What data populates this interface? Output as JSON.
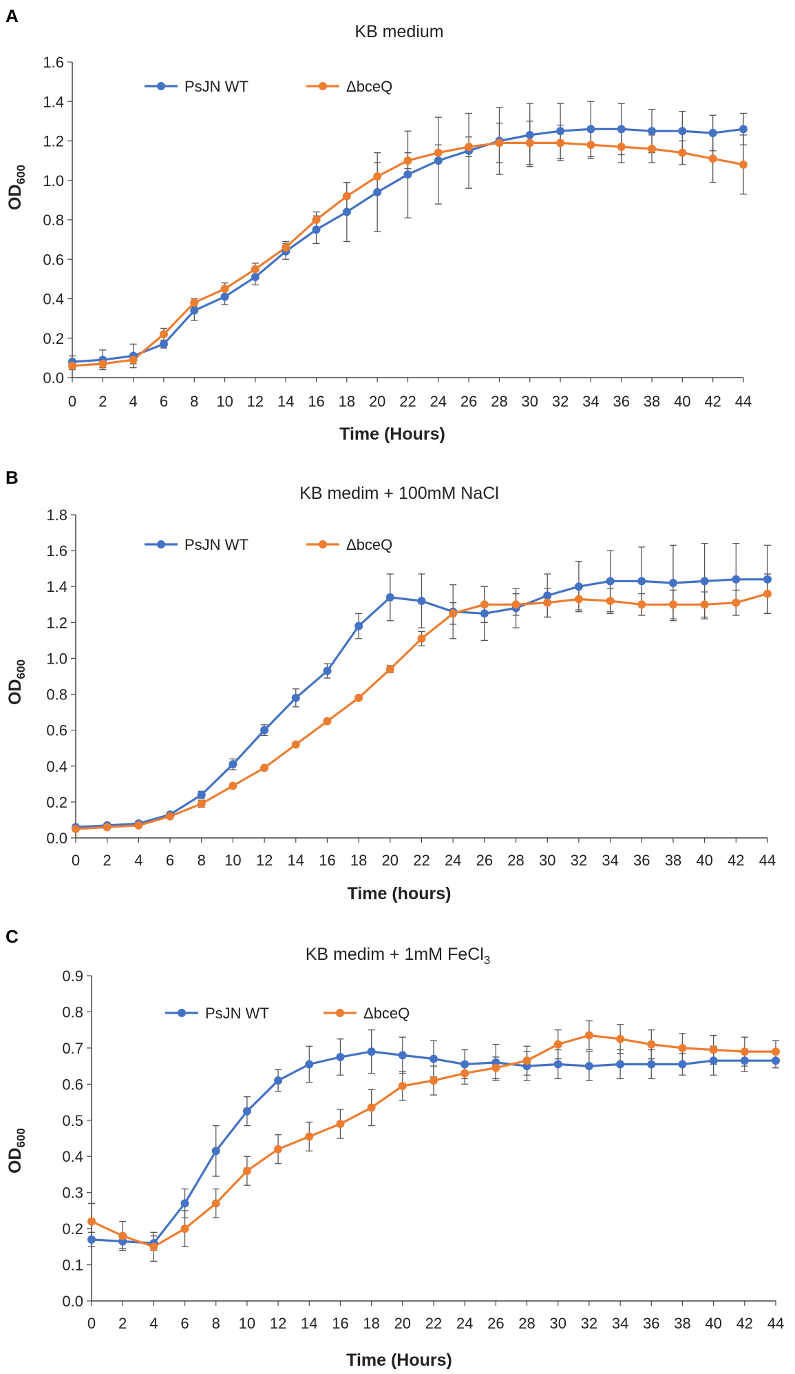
{
  "colors": {
    "wt": "#4472C4",
    "mut": "#ED7D31",
    "axis": "#444444",
    "err": "#555555"
  },
  "chart_data": [
    {
      "type": "line",
      "panel": "A",
      "title": "KB medium",
      "xlabel": "Time (Hours)",
      "ylabel_main": "OD",
      "ylabel_sub": "600",
      "ylim": [
        0,
        1.6
      ],
      "yticks": [
        "0.0",
        "0.2",
        "0.4",
        "0.6",
        "0.8",
        "1.0",
        "1.2",
        "1.4",
        "1.6"
      ],
      "x": [
        0,
        2,
        4,
        6,
        8,
        10,
        12,
        14,
        16,
        18,
        20,
        22,
        24,
        26,
        28,
        30,
        32,
        34,
        36,
        38,
        40,
        42,
        44
      ],
      "legend": [
        "PsJN WT",
        "ΔbceQ"
      ],
      "series": [
        {
          "name": "PsJN WT",
          "values": [
            0.08,
            0.09,
            0.11,
            0.17,
            0.34,
            0.41,
            0.51,
            0.64,
            0.75,
            0.84,
            0.94,
            1.03,
            1.1,
            1.15,
            1.2,
            1.23,
            1.25,
            1.26,
            1.26,
            1.25,
            1.25,
            1.24,
            1.26
          ],
          "errors": [
            0.03,
            0.05,
            0.06,
            0.02,
            0.05,
            0.04,
            0.04,
            0.04,
            0.07,
            0.15,
            0.2,
            0.22,
            0.22,
            0.19,
            0.17,
            0.16,
            0.14,
            0.14,
            0.13,
            0.11,
            0.1,
            0.09,
            0.08
          ]
        },
        {
          "name": "ΔbceQ",
          "values": [
            0.06,
            0.07,
            0.09,
            0.22,
            0.38,
            0.45,
            0.55,
            0.66,
            0.8,
            0.92,
            1.02,
            1.1,
            1.14,
            1.17,
            1.19,
            1.19,
            1.19,
            1.18,
            1.17,
            1.16,
            1.14,
            1.11,
            1.08
          ],
          "errors": [
            0.02,
            0.02,
            0.02,
            0.03,
            0.02,
            0.03,
            0.03,
            0.03,
            0.04,
            0.07,
            0.07,
            0.04,
            0.04,
            0.05,
            0.1,
            0.11,
            0.09,
            0.07,
            0.08,
            0.07,
            0.06,
            0.12,
            0.15
          ]
        }
      ]
    },
    {
      "type": "line",
      "panel": "B",
      "title": "KB medim + 100mM NaCl",
      "xlabel": "Time (hours)",
      "ylabel_main": "OD",
      "ylabel_sub": "600",
      "ylim": [
        0,
        1.8
      ],
      "yticks": [
        "0.0",
        "0.2",
        "0.4",
        "0.6",
        "0.8",
        "1.0",
        "1.2",
        "1.4",
        "1.6",
        "1.8"
      ],
      "x": [
        0,
        2,
        4,
        6,
        8,
        10,
        12,
        14,
        16,
        18,
        20,
        22,
        24,
        26,
        28,
        30,
        32,
        34,
        36,
        38,
        40,
        42,
        44
      ],
      "legend": [
        "PsJN WT",
        "ΔbceQ"
      ],
      "series": [
        {
          "name": "PsJN WT",
          "values": [
            0.06,
            0.07,
            0.08,
            0.13,
            0.24,
            0.41,
            0.6,
            0.78,
            0.93,
            1.18,
            1.34,
            1.32,
            1.26,
            1.25,
            1.28,
            1.35,
            1.4,
            1.43,
            1.43,
            1.42,
            1.43,
            1.44,
            1.44
          ],
          "errors": [
            0.01,
            0.01,
            0.01,
            0.01,
            0.02,
            0.03,
            0.03,
            0.05,
            0.04,
            0.07,
            0.13,
            0.15,
            0.15,
            0.15,
            0.11,
            0.12,
            0.14,
            0.17,
            0.19,
            0.21,
            0.21,
            0.2,
            0.19
          ]
        },
        {
          "name": "ΔbceQ",
          "values": [
            0.05,
            0.06,
            0.07,
            0.12,
            0.19,
            0.29,
            0.39,
            0.52,
            0.65,
            0.78,
            0.94,
            1.11,
            1.25,
            1.3,
            1.3,
            1.31,
            1.33,
            1.32,
            1.3,
            1.3,
            1.3,
            1.31,
            1.36
          ],
          "errors": [
            0.01,
            0.01,
            0.01,
            0.01,
            0.02,
            0.01,
            0.01,
            0.01,
            0.01,
            0.01,
            0.02,
            0.04,
            0.06,
            0.1,
            0.06,
            0.08,
            0.06,
            0.07,
            0.06,
            0.08,
            0.07,
            0.07,
            0.11
          ]
        }
      ]
    },
    {
      "type": "line",
      "panel": "C",
      "title_main": "KB medim + 1mM FeCl",
      "title_sub": "3",
      "xlabel": "Time (Hours)",
      "ylabel_main": "OD",
      "ylabel_sub": "600",
      "ylim": [
        0,
        0.9
      ],
      "yticks": [
        "0.0",
        "0.1",
        "0.2",
        "0.3",
        "0.4",
        "0.5",
        "0.6",
        "0.7",
        "0.8",
        "0.9"
      ],
      "x": [
        0,
        2,
        4,
        6,
        8,
        10,
        12,
        14,
        16,
        18,
        20,
        22,
        24,
        26,
        28,
        30,
        32,
        34,
        36,
        38,
        40,
        42,
        44
      ],
      "legend": [
        "PsJN WT",
        "ΔbceQ"
      ],
      "series": [
        {
          "name": "PsJN WT",
          "values": [
            0.17,
            0.165,
            0.16,
            0.27,
            0.415,
            0.525,
            0.61,
            0.655,
            0.675,
            0.69,
            0.68,
            0.67,
            0.655,
            0.66,
            0.65,
            0.655,
            0.65,
            0.655,
            0.655,
            0.655,
            0.665,
            0.665,
            0.665
          ],
          "errors": [
            0.02,
            0.02,
            0.02,
            0.04,
            0.07,
            0.04,
            0.03,
            0.05,
            0.05,
            0.06,
            0.05,
            0.05,
            0.04,
            0.05,
            0.04,
            0.04,
            0.04,
            0.04,
            0.04,
            0.03,
            0.04,
            0.03,
            0.02
          ]
        },
        {
          "name": "ΔbceQ",
          "values": [
            0.22,
            0.18,
            0.15,
            0.2,
            0.27,
            0.36,
            0.42,
            0.455,
            0.49,
            0.535,
            0.595,
            0.61,
            0.63,
            0.645,
            0.665,
            0.71,
            0.735,
            0.725,
            0.71,
            0.7,
            0.695,
            0.69,
            0.69
          ],
          "errors": [
            0.05,
            0.04,
            0.04,
            0.05,
            0.04,
            0.04,
            0.04,
            0.04,
            0.04,
            0.05,
            0.04,
            0.04,
            0.03,
            0.03,
            0.04,
            0.04,
            0.04,
            0.04,
            0.04,
            0.04,
            0.04,
            0.04,
            0.03
          ]
        }
      ]
    }
  ]
}
